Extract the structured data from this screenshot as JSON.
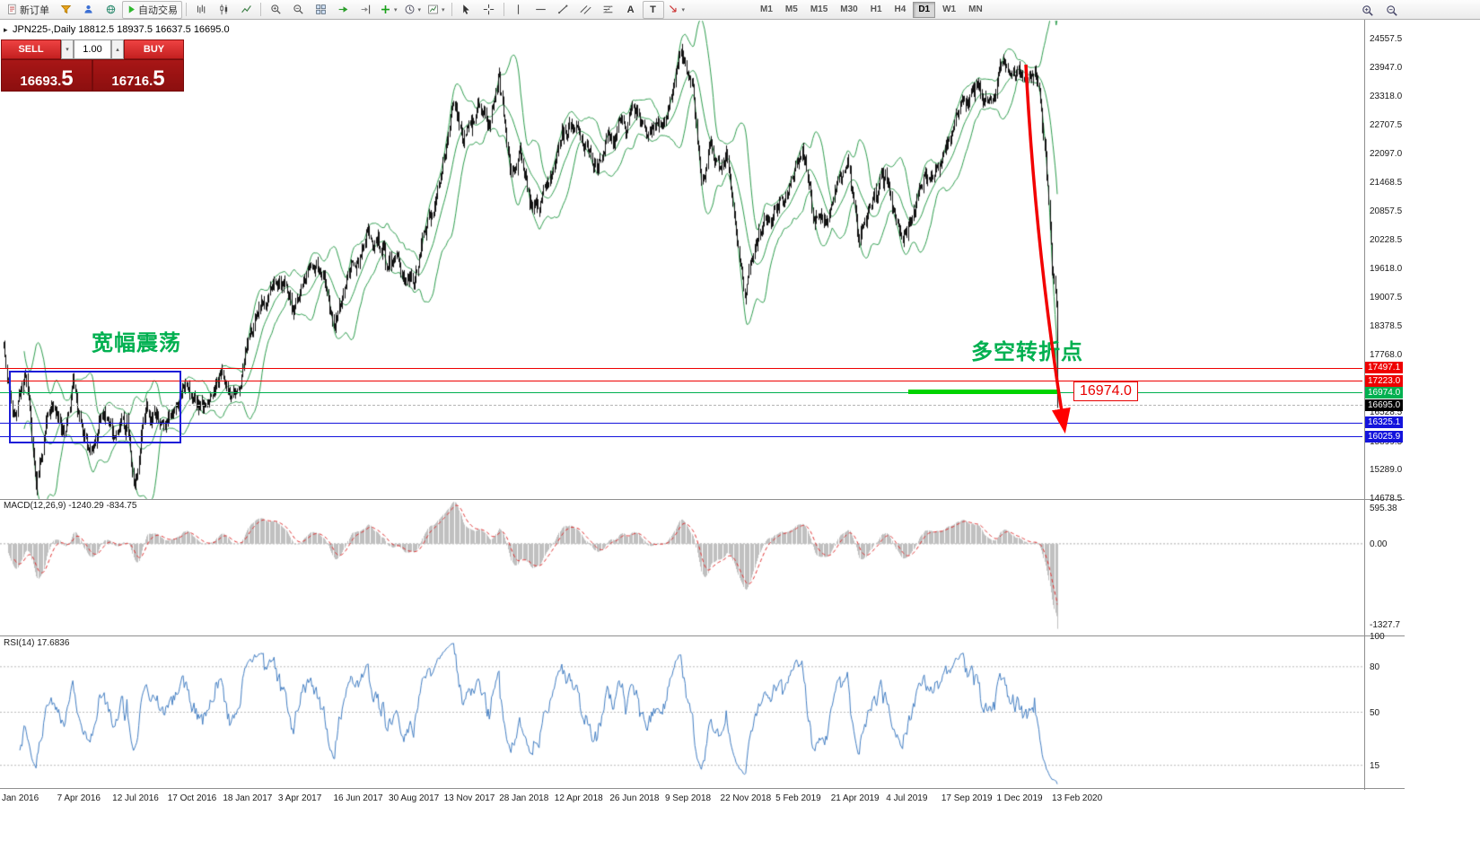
{
  "glyphs": {
    "expand": "▸",
    "caret_down": "▾",
    "caret_up": "▴",
    "letter_a": "A",
    "letter_t": "T"
  },
  "toolbar": {
    "new_order_label": "新订单",
    "autotrading_label": "自动交易",
    "timeframe_buttons": [
      "M1",
      "M5",
      "M15",
      "M30",
      "H1",
      "H4",
      "D1",
      "W1",
      "MN"
    ],
    "active_timeframe": "D1"
  },
  "chart_header": {
    "title": "JPN225-,Daily 18812.5 18937.5 16637.5 16695.0",
    "symbol": "JPN225-",
    "period": "Daily"
  },
  "trade_panel": {
    "sell_label": "SELL",
    "buy_label": "BUY",
    "volume": "1.00",
    "sell_price_main": "16693",
    "sell_price_pip": "5",
    "buy_price_main": "16716",
    "buy_price_pip": "5"
  },
  "price_axis": {
    "grid_labels": [
      "24557.5",
      "23947.0",
      "23318.0",
      "22707.5",
      "22097.0",
      "21468.5",
      "20857.5",
      "20228.5",
      "19618.0",
      "19007.5",
      "18378.5",
      "17768.0",
      "16528.5",
      "15899.5",
      "15289.0",
      "14678.5"
    ],
    "tags": [
      {
        "text": "17497.1",
        "price": 17497.1,
        "bg": "#ee0000"
      },
      {
        "text": "17223.0",
        "price": 17223.0,
        "bg": "#ee0000"
      },
      {
        "text": "16974.0",
        "price": 16974.0,
        "bg": "#00b050"
      },
      {
        "text": "16695.0",
        "price": 16695.0,
        "bg": "#000000"
      },
      {
        "text": "16325.1",
        "price": 16325.1,
        "bg": "#1414dc"
      },
      {
        "text": "16025.9",
        "price": 16025.9,
        "bg": "#1414dc"
      }
    ]
  },
  "levels": [
    {
      "price": 17497.1,
      "color": "#ee0000",
      "style": "solid"
    },
    {
      "price": 17223.0,
      "color": "#ee0000",
      "style": "solid"
    },
    {
      "price": 16974.0,
      "color": "#00b050",
      "style": "solid"
    },
    {
      "price": 16695.0,
      "color": "#b5b5b5",
      "style": "dashed"
    },
    {
      "price": 16325.1,
      "color": "#1414dc",
      "style": "solid"
    },
    {
      "price": 16025.9,
      "color": "#1414dc",
      "style": "solid"
    }
  ],
  "annotations": {
    "range_note": "宽幅震荡",
    "pivot_note": "多空转折点",
    "pivot_price_label": "16974.0"
  },
  "macd_panel": {
    "label": "MACD(12,26,9) -1240.29 -834.75",
    "axis_labels": [
      {
        "text": "595.38",
        "value": 595.38
      },
      {
        "text": "0.00",
        "value": 0
      },
      {
        "text": "-1327.7",
        "value": -1327.7
      }
    ]
  },
  "rsi_panel": {
    "label": "RSI(14) 17.6836",
    "axis_labels": [
      {
        "text": "100",
        "value": 100
      },
      {
        "text": "80",
        "value": 80
      },
      {
        "text": "50",
        "value": 50
      },
      {
        "text": "15",
        "value": 15
      }
    ],
    "level_lines": [
      80,
      50,
      15
    ]
  },
  "time_axis": [
    "Jan 2016",
    "7 Apr 2016",
    "12 Jul 2016",
    "17 Oct 2016",
    "18 Jan 2017",
    "3 Apr 2017",
    "16 Jun 2017",
    "30 Aug 2017",
    "13 Nov 2017",
    "28 Jan 2018",
    "12 Apr 2018",
    "26 Jun 2018",
    "9 Sep 2018",
    "22 Nov 2018",
    "5 Feb 2019",
    "21 Apr 2019",
    "4 Jul 2019",
    "17 Sep 2019",
    "1 Dec 2019",
    "13 Feb 2020"
  ],
  "chart_data": {
    "type": "candlestick",
    "symbol": "JPN225-",
    "period": "Daily",
    "visible_range": [
      "Jan 2016",
      "Mar 2020"
    ],
    "y_range": [
      14678.5,
      24557.5
    ],
    "ohlc_current": {
      "open": 18812.5,
      "high": 18937.5,
      "low": 16637.5,
      "close": 16695.0
    },
    "horizontal_levels": [
      17497.1,
      17223.0,
      16974.0,
      16325.1,
      16025.9
    ],
    "price_anchors": [
      [
        0,
        18000
      ],
      [
        8,
        16400
      ],
      [
        20,
        17350
      ],
      [
        30,
        14980
      ],
      [
        43,
        16900
      ],
      [
        56,
        16050
      ],
      [
        64,
        17150
      ],
      [
        80,
        15550
      ],
      [
        92,
        16650
      ],
      [
        102,
        16050
      ],
      [
        114,
        16700
      ],
      [
        120,
        14950
      ],
      [
        131,
        16500
      ],
      [
        153,
        16300
      ],
      [
        168,
        16950
      ],
      [
        184,
        16550
      ],
      [
        199,
        17450
      ],
      [
        209,
        16950
      ],
      [
        220,
        17550
      ],
      [
        240,
        19250
      ],
      [
        256,
        19450
      ],
      [
        268,
        19050
      ],
      [
        281,
        19650
      ],
      [
        296,
        19350
      ],
      [
        306,
        18400
      ],
      [
        322,
        19950
      ],
      [
        337,
        20250
      ],
      [
        352,
        19950
      ],
      [
        367,
        19650
      ],
      [
        379,
        19350
      ],
      [
        390,
        20450
      ],
      [
        403,
        21550
      ],
      [
        416,
        22950
      ],
      [
        424,
        22450
      ],
      [
        437,
        22950
      ],
      [
        449,
        22750
      ],
      [
        458,
        24100
      ],
      [
        469,
        21750
      ],
      [
        477,
        22150
      ],
      [
        486,
        21000
      ],
      [
        495,
        20700
      ],
      [
        502,
        21400
      ],
      [
        516,
        22500
      ],
      [
        528,
        22750
      ],
      [
        540,
        22300
      ],
      [
        549,
        21850
      ],
      [
        560,
        22350
      ],
      [
        572,
        22750
      ],
      [
        583,
        23050
      ],
      [
        598,
        22650
      ],
      [
        611,
        22750
      ],
      [
        625,
        24420
      ],
      [
        637,
        23250
      ],
      [
        645,
        21250
      ],
      [
        654,
        22250
      ],
      [
        662,
        21650
      ],
      [
        668,
        22350
      ],
      [
        678,
        20350
      ],
      [
        685,
        19000
      ],
      [
        694,
        20050
      ],
      [
        705,
        20750
      ],
      [
        713,
        20850
      ],
      [
        726,
        21600
      ],
      [
        738,
        22250
      ],
      [
        748,
        21100
      ],
      [
        758,
        20350
      ],
      [
        770,
        21350
      ],
      [
        780,
        21750
      ],
      [
        790,
        20350
      ],
      [
        800,
        20900
      ],
      [
        815,
        21700
      ],
      [
        825,
        20600
      ],
      [
        835,
        20250
      ],
      [
        850,
        21500
      ],
      [
        866,
        22000
      ],
      [
        880,
        22850
      ],
      [
        895,
        23300
      ],
      [
        905,
        23250
      ],
      [
        916,
        23350
      ],
      [
        925,
        24050
      ],
      [
        932,
        23650
      ],
      [
        940,
        23850
      ],
      [
        947,
        23500
      ],
      [
        953,
        23870
      ],
      [
        958,
        23150
      ],
      [
        962,
        22300
      ],
      [
        966,
        21000
      ],
      [
        969,
        19700
      ],
      [
        971,
        19300
      ],
      [
        973,
        18900
      ],
      [
        974,
        16695
      ]
    ],
    "indicators": {
      "bollinger": {
        "period": 20,
        "deviation": 2
      },
      "macd": {
        "fast": 12,
        "slow": 26,
        "signal": 9,
        "current_main": -1240.29,
        "current_signal": -834.75
      },
      "rsi": {
        "period": 14,
        "current": 17.6836
      }
    }
  }
}
